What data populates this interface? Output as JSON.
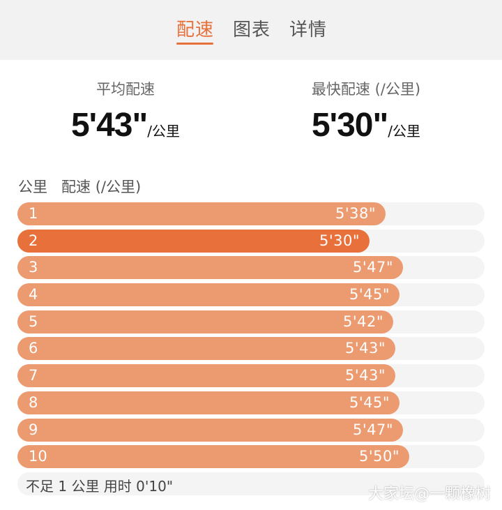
{
  "tabs": [
    {
      "label": "配速",
      "active": true
    },
    {
      "label": "图表",
      "active": false
    },
    {
      "label": "详情",
      "active": false
    }
  ],
  "summary": {
    "average": {
      "label": "平均配速",
      "value": "5'43\"",
      "unit": "/公里"
    },
    "fastest": {
      "label": "最快配速 (/公里)",
      "value": "5'30\"",
      "unit": "/公里"
    }
  },
  "list_header": {
    "km_label": "公里",
    "pace_label": "配速 (/公里)"
  },
  "splits": [
    {
      "km": "1",
      "pace": "5'38\"",
      "seconds": 338
    },
    {
      "km": "2",
      "pace": "5'30\"",
      "seconds": 330,
      "fastest": true
    },
    {
      "km": "3",
      "pace": "5'47\"",
      "seconds": 347
    },
    {
      "km": "4",
      "pace": "5'45\"",
      "seconds": 345
    },
    {
      "km": "5",
      "pace": "5'42\"",
      "seconds": 342
    },
    {
      "km": "6",
      "pace": "5'43\"",
      "seconds": 343
    },
    {
      "km": "7",
      "pace": "5'43\"",
      "seconds": 343
    },
    {
      "km": "8",
      "pace": "5'45\"",
      "seconds": 345
    },
    {
      "km": "9",
      "pace": "5'47\"",
      "seconds": 347
    },
    {
      "km": "10",
      "pace": "5'50\"",
      "seconds": 350
    }
  ],
  "footer": {
    "text": "不足 1 公里 用时 0'10\""
  },
  "watermark": "大家坛@一颗橡树",
  "colors": {
    "accent": "#e8703a",
    "bar": "#ec9a6f",
    "track": "#f4f4f4"
  }
}
